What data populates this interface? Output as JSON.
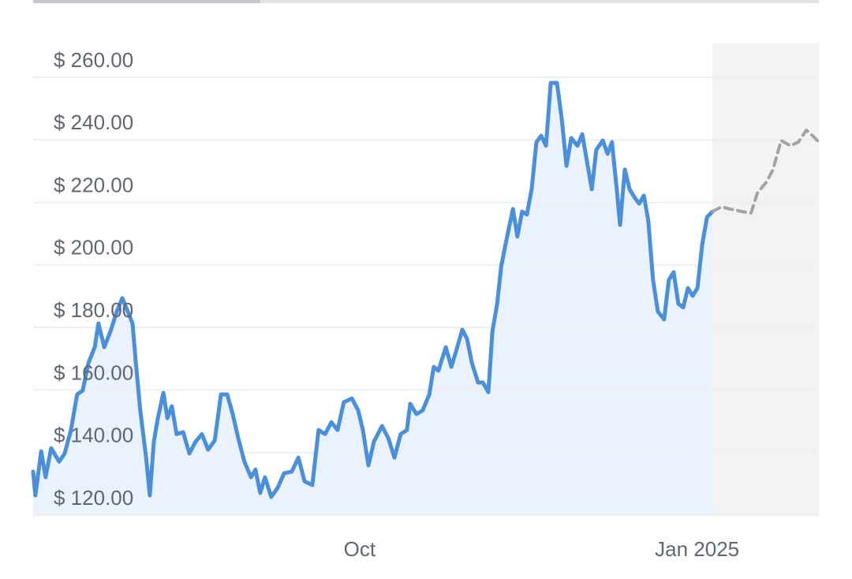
{
  "chart_data": {
    "type": "line",
    "xlim": [
      0,
      214.2
    ],
    "xticks": [
      {
        "value": 89,
        "label": "Oct"
      },
      {
        "value": 181,
        "label": "Jan 2025"
      }
    ],
    "ylim": [
      120,
      260
    ],
    "yticks": [
      {
        "value": 120,
        "label": "$ 120.00"
      },
      {
        "value": 140,
        "label": "$ 140.00"
      },
      {
        "value": 160,
        "label": "$ 160.00"
      },
      {
        "value": 180,
        "label": "$ 180.00"
      },
      {
        "value": 200,
        "label": "$ 200.00"
      },
      {
        "value": 220,
        "label": "$ 220.00"
      },
      {
        "value": 240,
        "label": "$ 240.00"
      },
      {
        "value": 260,
        "label": "$ 260.00"
      }
    ],
    "grid": true,
    "series": [
      {
        "color": "#4a8fdb",
        "style": "solid",
        "area": "#eaf2fd",
        "x": [
          0,
          0.6,
          2.2,
          3.4,
          4.9,
          7.1,
          8.6,
          10.3,
          12.0,
          13.5,
          15.1,
          16.8,
          17.8,
          19.4,
          21.1,
          22.8,
          24.3,
          25.8,
          27.1,
          28.0,
          29.2,
          30.8,
          31.8,
          32.9,
          34.0,
          35.5,
          36.6,
          37.8,
          39.1,
          40.9,
          42.6,
          44.3,
          46.0,
          47.7,
          49.5,
          51.2,
          52.9,
          54.4,
          55.9,
          57.6,
          59.4,
          60.6,
          61.9,
          63.2,
          64.9,
          66.7,
          68.4,
          70.5,
          72.3,
          74.0,
          76.1,
          77.8,
          79.6,
          81.3,
          83.0,
          84.7,
          86.9,
          88.6,
          89.9,
          91.4,
          92.9,
          95.1,
          96.8,
          98.5,
          100.2,
          101.9,
          102.8,
          104.5,
          106.2,
          108.0,
          109.2,
          110.5,
          112.5,
          114.0,
          115.3,
          117.0,
          118.3,
          119.6,
          121.3,
          122.6,
          124.1,
          125.2,
          126.5,
          127.6,
          129.0,
          130.8,
          132.0,
          133.3,
          134.6,
          135.9,
          137.2,
          138.5,
          139.8,
          141.1,
          142.8,
          144.1,
          145.4,
          146.7,
          148.4,
          149.7,
          151.0,
          152.3,
          153.5,
          155.3,
          156.6,
          157.8,
          159.1,
          160.0,
          161.3,
          162.6,
          163.9,
          165.2,
          166.5,
          167.7,
          169.0,
          170.3,
          172.0,
          173.3,
          174.6,
          175.9,
          177.2,
          178.5,
          179.8,
          181.1,
          182.4,
          183.7,
          185.2
        ],
        "values": [
          133.9,
          126.3,
          140.4,
          132.1,
          141.4,
          137.1,
          139.7,
          147.2,
          158.6,
          159.8,
          168.7,
          173.7,
          181.3,
          173.7,
          178.8,
          185.1,
          189.4,
          185.1,
          181.3,
          168.7,
          153.5,
          138.4,
          126.3,
          143.5,
          151.0,
          159.1,
          151.0,
          154.8,
          145.9,
          146.5,
          139.7,
          143.5,
          145.9,
          140.9,
          143.9,
          158.6,
          158.6,
          152.3,
          144.7,
          137.1,
          132.1,
          134.6,
          127.1,
          132.1,
          125.8,
          128.8,
          133.4,
          133.9,
          138.4,
          130.8,
          129.6,
          147.2,
          145.9,
          149.7,
          147.2,
          156.1,
          157.3,
          153.5,
          147.2,
          135.9,
          143.5,
          148.5,
          144.7,
          138.4,
          145.9,
          147.2,
          155.6,
          152.3,
          153.5,
          158.6,
          167.4,
          166.2,
          173.7,
          167.4,
          172.4,
          179.3,
          176.3,
          168.7,
          162.4,
          162.4,
          159.3,
          178.8,
          187.6,
          199.5,
          207.8,
          217.9,
          209.1,
          217.1,
          216.1,
          224.2,
          239.3,
          241.3,
          238.1,
          258.2,
          258.2,
          246.9,
          231.7,
          240.6,
          238.1,
          241.8,
          233.0,
          224.2,
          236.8,
          239.8,
          235.5,
          239.3,
          224.2,
          212.8,
          230.5,
          224.2,
          221.7,
          219.6,
          222.2,
          214.1,
          195.2,
          185.1,
          182.6,
          195.2,
          197.7,
          187.6,
          186.4,
          192.6,
          190.1,
          192.6,
          206.5,
          215.3,
          217.1
        ]
      },
      {
        "color": "#a3a3a3",
        "style": "dashed",
        "area": "#f3f3f3",
        "x": [
          185.2,
          187.7,
          189.9,
          193.1,
          195.7,
          197.4,
          200.0,
          201.7,
          203.9,
          206.5,
          208.6,
          210.8,
          212.5,
          214.2
        ],
        "values": [
          217.1,
          218.6,
          217.9,
          217.1,
          216.6,
          222.9,
          226.7,
          230.5,
          239.8,
          238.1,
          239.3,
          243.1,
          241.3,
          239.3
        ]
      }
    ]
  }
}
